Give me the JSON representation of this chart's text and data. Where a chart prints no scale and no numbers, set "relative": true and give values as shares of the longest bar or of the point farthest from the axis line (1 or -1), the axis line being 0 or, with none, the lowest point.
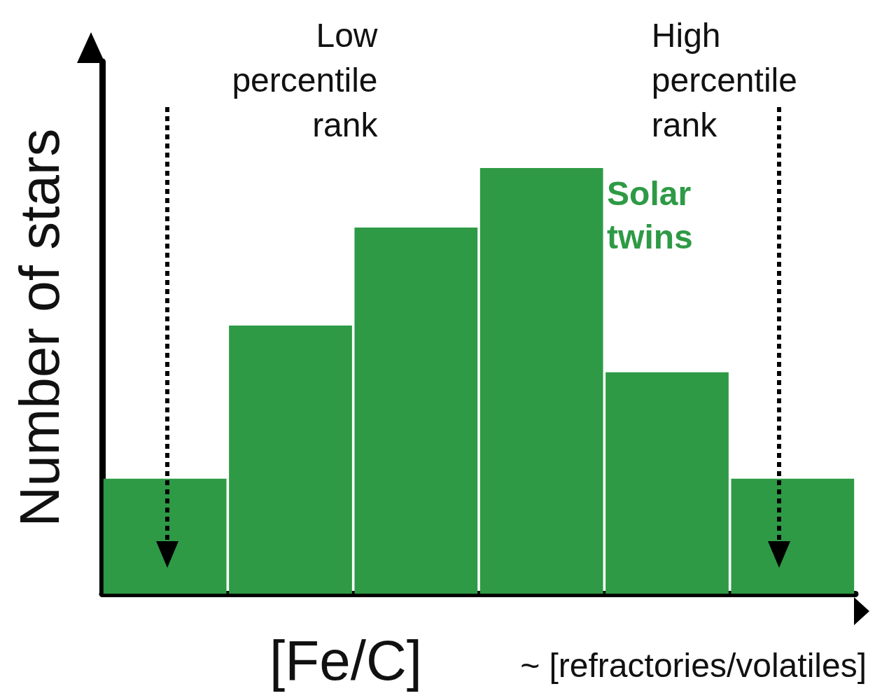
{
  "chart_data": {
    "type": "bar",
    "relative": true,
    "xlabel": "[Fe/C]",
    "ylabel": "Number of stars",
    "categories": [
      null,
      null,
      null,
      null,
      null,
      null
    ],
    "series": [
      {
        "name": "Solar twins",
        "color": "#2e9a45",
        "values": [
          0.27,
          0.63,
          0.86,
          1,
          0.52,
          0.27
        ]
      }
    ],
    "annotations": [
      "Low percentile rank",
      "High percentile rank",
      "~ [refractories/volatiles]"
    ],
    "grid": false,
    "legend": false
  }
}
